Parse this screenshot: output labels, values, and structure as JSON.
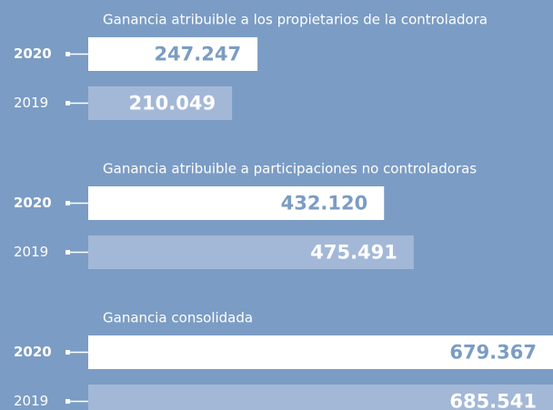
{
  "chart_data": [
    {
      "type": "bar",
      "title": "Ganancia atribuible a los propietarios de la controladora",
      "categories": [
        "2020",
        "2019"
      ],
      "values": [
        247247,
        210049
      ],
      "value_labels": [
        "247.247",
        "210.049"
      ],
      "colors": [
        "#ffffff",
        "#a3b8d7"
      ],
      "label_colors": [
        "#7b9cc4",
        "#ffffff"
      ]
    },
    {
      "type": "bar",
      "title": "Ganancia atribuible a participaciones no controladoras",
      "categories": [
        "2020",
        "2019"
      ],
      "values": [
        432120,
        475491
      ],
      "value_labels": [
        "432.120",
        "475.491"
      ],
      "colors": [
        "#ffffff",
        "#a3b8d7"
      ],
      "label_colors": [
        "#7b9cc4",
        "#ffffff"
      ]
    },
    {
      "type": "bar",
      "title": "Ganancia consolidada",
      "categories": [
        "2020",
        "2019"
      ],
      "values": [
        679367,
        685541
      ],
      "value_labels": [
        "679.367",
        "685.541"
      ],
      "colors": [
        "#ffffff",
        "#a3b8d7"
      ],
      "label_colors": [
        "#7b9cc4",
        "#ffffff"
      ]
    }
  ]
}
